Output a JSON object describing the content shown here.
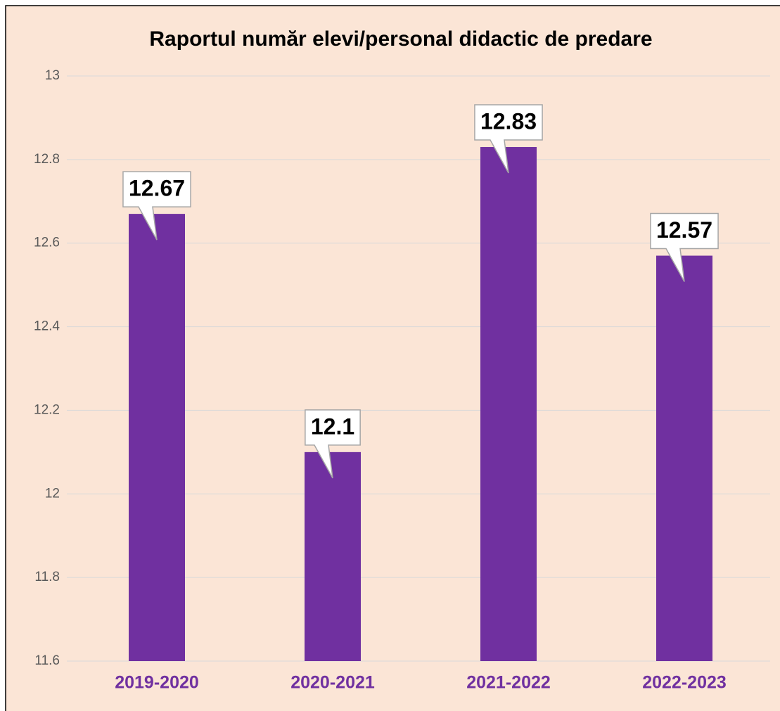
{
  "chart_data": {
    "type": "bar",
    "title": "Raportul număr elevi/personal didactic de predare",
    "categories": [
      "2019-2020",
      "2020-2021",
      "2021-2022",
      "2022-2023"
    ],
    "values": [
      12.67,
      12.1,
      12.83,
      12.57
    ],
    "color": "#7030a0",
    "ylim": [
      11.6,
      13
    ],
    "yticks": [
      11.6,
      11.8,
      12,
      12.2,
      12.4,
      12.6,
      12.8,
      13
    ],
    "grid": true
  }
}
